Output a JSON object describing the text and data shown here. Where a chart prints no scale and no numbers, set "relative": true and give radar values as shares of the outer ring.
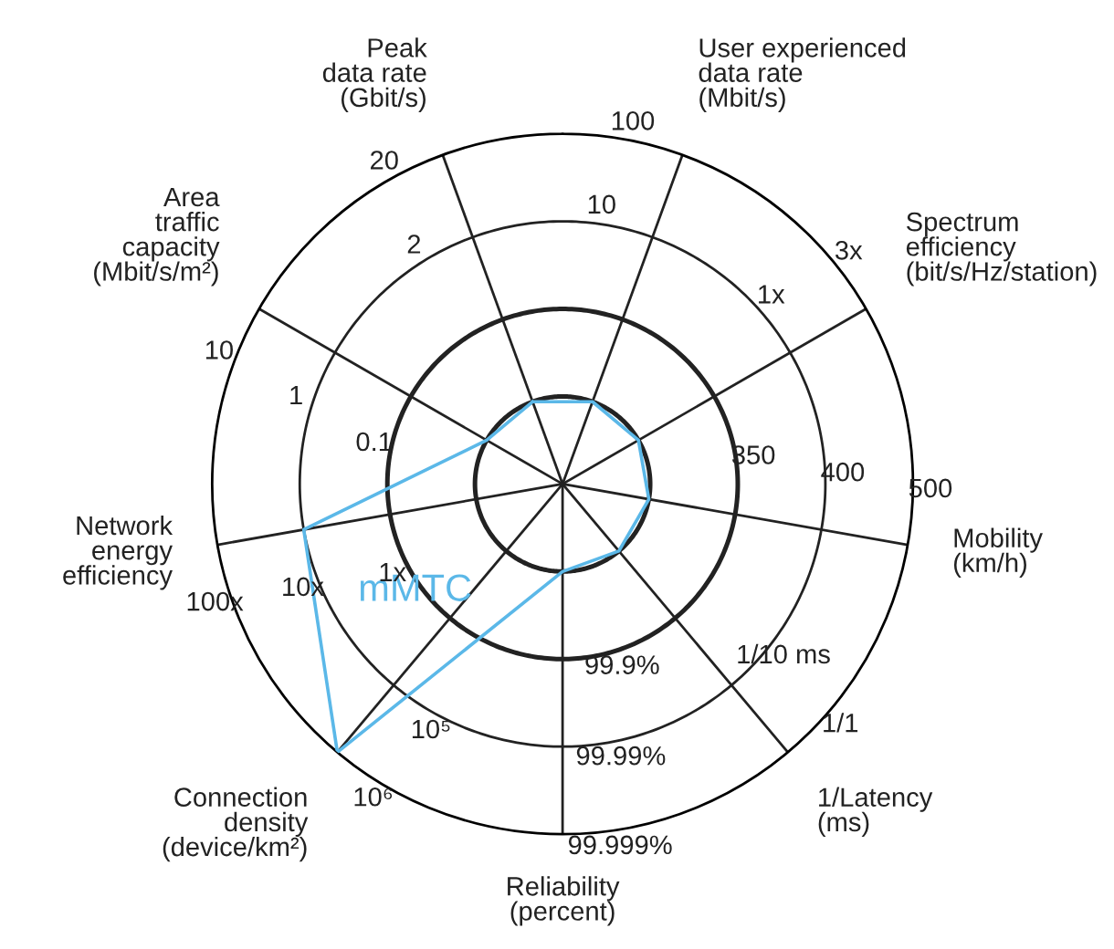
{
  "chart_data": {
    "type": "radar",
    "relative": true,
    "grid": true,
    "legend": false,
    "categories": [
      "Peak\ndata rate\n(Gbit/s)",
      "User experienced\ndata rate\n(Mbit/s)",
      "Spectrum\nefficiency\n(bit/s/Hz/station)",
      "Mobility\n(km/h)",
      "1/Latency\n(ms)",
      "Reliability\n(percent)",
      "Connection\ndensity\n(device/km²)",
      "Network\nenergy\nefficiency",
      "Area\ntraffic\ncapacity\n(Mbit/s/m²)"
    ],
    "series": [
      {
        "name": "mMTC",
        "color": "#5bb8e8",
        "values": [
          0.25,
          0.25,
          0.25,
          0.25,
          0.25,
          0.25,
          1,
          0.75,
          0.25
        ]
      }
    ],
    "annotations": [
      {
        "text": "2",
        "x": "Peak\ndata rate\n(Gbit/s)"
      },
      {
        "text": "20",
        "x": "Peak\ndata rate\n(Gbit/s)"
      },
      {
        "text": "10",
        "x": "User experienced\ndata rate\n(Mbit/s)"
      },
      {
        "text": "100",
        "x": "User experienced\ndata rate\n(Mbit/s)"
      },
      {
        "text": "1x",
        "x": "Spectrum\nefficiency\n(bit/s/Hz/station)"
      },
      {
        "text": "3x",
        "x": "Spectrum\nefficiency\n(bit/s/Hz/station)"
      },
      {
        "text": "350",
        "x": "Mobility\n(km/h)"
      },
      {
        "text": "400",
        "x": "Mobility\n(km/h)"
      },
      {
        "text": "500",
        "x": "Mobility\n(km/h)"
      },
      {
        "text": "1/10 ms",
        "x": "1/Latency\n(ms)"
      },
      {
        "text": "1/1",
        "x": "1/Latency\n(ms)"
      },
      {
        "text": "99.9%",
        "x": "Reliability\n(percent)"
      },
      {
        "text": "99.99%",
        "x": "Reliability\n(percent)"
      },
      {
        "text": "99.999%",
        "x": "Reliability\n(percent)"
      },
      {
        "text": "10⁵",
        "x": "Connection\ndensity\n(device/km²)"
      },
      {
        "text": "10⁶",
        "x": "Connection\ndensity\n(device/km²)"
      },
      {
        "text": "1x",
        "x": "Network\nenergy\nefficiency"
      },
      {
        "text": "10x",
        "x": "Network\nenergy\nefficiency"
      },
      {
        "text": "100x",
        "x": "Network\nenergy\nefficiency"
      },
      {
        "text": "0.1",
        "x": "Area\ntraffic\ncapacity\n(Mbit/s/m²)"
      },
      {
        "text": "1",
        "x": "Area\ntraffic\ncapacity\n(Mbit/s/m²)"
      },
      {
        "text": "10",
        "x": "Area\ntraffic\ncapacity\n(Mbit/s/m²)"
      }
    ]
  }
}
